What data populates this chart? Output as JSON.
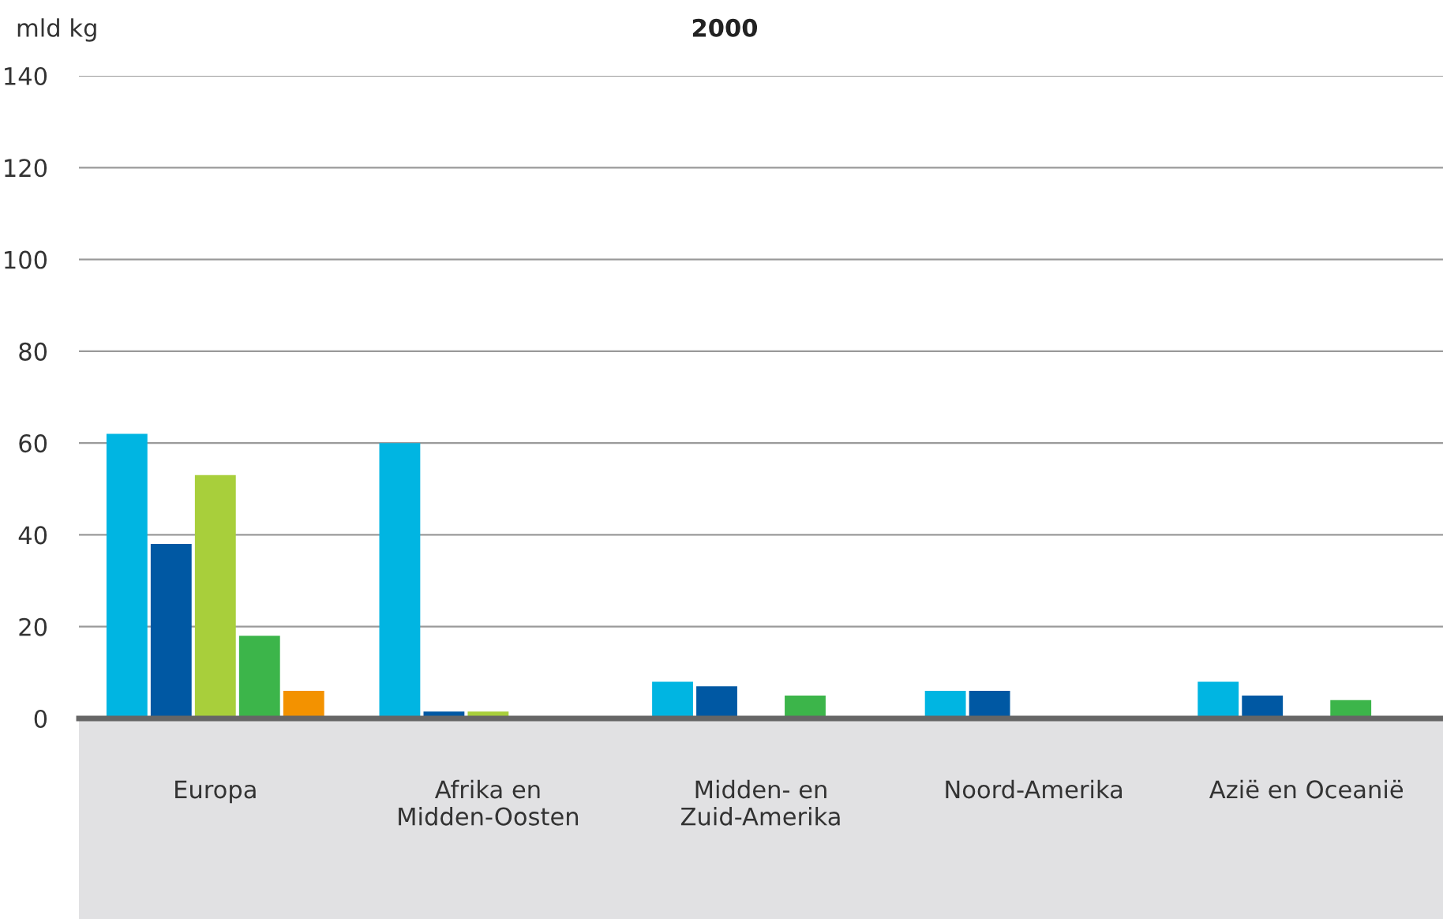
{
  "chart_data": {
    "type": "bar",
    "title": "2000",
    "ylabel": "mld kg",
    "categories": [
      "Europa",
      "Afrika en\nMidden-Oosten",
      "Midden- en\nZuid-Amerika",
      "Noord-Amerika",
      "Azië en Oceanië"
    ],
    "series": [
      {
        "color": "#00b5e2",
        "values": [
          62,
          60,
          8,
          6,
          8
        ]
      },
      {
        "color": "#0058a3",
        "values": [
          38,
          1.5,
          7,
          6,
          5
        ]
      },
      {
        "color": "#a8cf3b",
        "values": [
          53,
          1.5,
          null,
          null,
          null
        ]
      },
      {
        "color": "#3cb54a",
        "values": [
          18,
          null,
          5,
          null,
          4
        ]
      },
      {
        "color": "#f39200",
        "values": [
          6,
          null,
          null,
          null,
          null
        ]
      }
    ],
    "ylim": [
      0,
      140
    ],
    "yticks": [
      0,
      20,
      40,
      60,
      80,
      100,
      120,
      140
    ],
    "grid": "y",
    "legend": false
  }
}
